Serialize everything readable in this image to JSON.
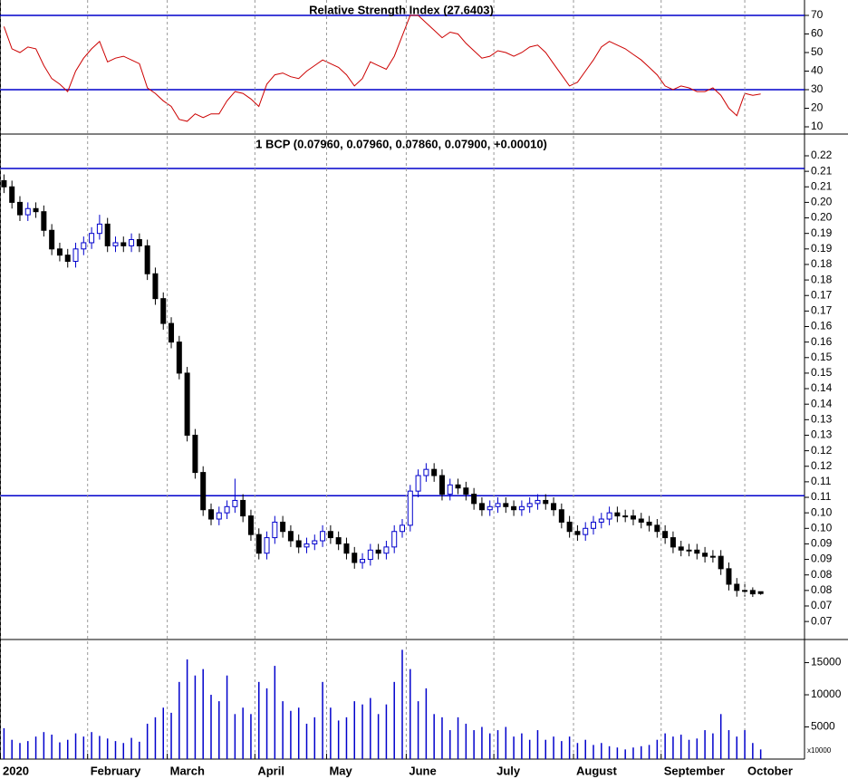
{
  "chart_data": [
    {
      "type": "line",
      "title": "Relative Strength Index (27.6403)",
      "color": "#cc0000",
      "values": [
        64,
        52,
        50,
        53,
        52,
        43,
        36,
        33,
        29,
        40,
        47,
        52,
        56,
        45,
        47,
        48,
        46,
        44,
        31,
        28,
        24,
        21,
        14,
        13,
        17,
        15,
        17,
        17,
        24,
        29,
        28,
        25,
        21,
        33,
        38,
        39,
        37,
        36,
        40,
        43,
        46,
        44,
        42,
        38,
        32,
        36,
        45,
        43,
        41,
        48,
        59,
        70,
        70,
        66,
        62,
        58,
        61,
        60,
        55,
        51,
        47,
        48,
        51,
        50,
        48,
        50,
        53,
        54,
        50,
        44,
        38,
        32,
        34,
        40,
        46,
        53,
        56,
        54,
        52,
        49,
        46,
        42,
        38,
        32,
        30,
        32,
        31,
        29,
        29,
        31,
        27,
        20,
        16,
        28,
        27,
        27.6403
      ],
      "xlim": [
        -0.5,
        100.5
      ],
      "ylim": [
        6.1,
        78.3
      ],
      "yticks": [
        10,
        20,
        30,
        40,
        50,
        60,
        70
      ],
      "reference_lines": [
        70,
        30
      ],
      "reference_color": "#0000cc"
    },
    {
      "type": "candlestick",
      "title": "1 BCP (0.07960, 0.07960, 0.07860, 0.07900, +0.00010)",
      "up_color": "#0000cc",
      "down_color": "#000000",
      "open": [
        0.212,
        0.21,
        0.205,
        0.201,
        0.203,
        0.202,
        0.196,
        0.19,
        0.188,
        0.186,
        0.19,
        0.192,
        0.195,
        0.198,
        0.191,
        0.192,
        0.191,
        0.193,
        0.191,
        0.182,
        0.174,
        0.166,
        0.16,
        0.15,
        0.13,
        0.118,
        0.106,
        0.103,
        0.105,
        0.107,
        0.109,
        0.104,
        0.098,
        0.092,
        0.097,
        0.102,
        0.099,
        0.096,
        0.094,
        0.095,
        0.096,
        0.099,
        0.097,
        0.095,
        0.092,
        0.089,
        0.09,
        0.093,
        0.092,
        0.094,
        0.099,
        0.101,
        0.112,
        0.117,
        0.119,
        0.117,
        0.111,
        0.114,
        0.113,
        0.111,
        0.108,
        0.106,
        0.107,
        0.108,
        0.107,
        0.106,
        0.107,
        0.108,
        0.109,
        0.108,
        0.106,
        0.102,
        0.099,
        0.098,
        0.1,
        0.102,
        0.103,
        0.105,
        0.104,
        0.104,
        0.103,
        0.102,
        0.101,
        0.099,
        0.097,
        0.094,
        0.093,
        0.093,
        0.092,
        0.091,
        0.091,
        0.087,
        0.082,
        0.08,
        0.08,
        0.0796
      ],
      "high": [
        0.214,
        0.212,
        0.207,
        0.205,
        0.205,
        0.204,
        0.198,
        0.192,
        0.19,
        0.192,
        0.194,
        0.197,
        0.201,
        0.2,
        0.194,
        0.194,
        0.195,
        0.195,
        0.193,
        0.184,
        0.176,
        0.168,
        0.162,
        0.152,
        0.132,
        0.12,
        0.108,
        0.107,
        0.109,
        0.116,
        0.111,
        0.106,
        0.1,
        0.099,
        0.104,
        0.104,
        0.101,
        0.098,
        0.097,
        0.098,
        0.101,
        0.101,
        0.099,
        0.097,
        0.094,
        0.092,
        0.095,
        0.095,
        0.096,
        0.101,
        0.103,
        0.114,
        0.119,
        0.121,
        0.121,
        0.119,
        0.116,
        0.116,
        0.115,
        0.113,
        0.11,
        0.109,
        0.11,
        0.11,
        0.109,
        0.109,
        0.11,
        0.111,
        0.111,
        0.11,
        0.108,
        0.104,
        0.101,
        0.102,
        0.104,
        0.105,
        0.107,
        0.107,
        0.106,
        0.106,
        0.105,
        0.104,
        0.103,
        0.101,
        0.099,
        0.096,
        0.095,
        0.095,
        0.094,
        0.093,
        0.093,
        0.089,
        0.084,
        0.082,
        0.081,
        0.0796
      ],
      "low": [
        0.208,
        0.203,
        0.199,
        0.199,
        0.2,
        0.194,
        0.188,
        0.186,
        0.184,
        0.184,
        0.188,
        0.19,
        0.193,
        0.189,
        0.189,
        0.189,
        0.189,
        0.189,
        0.18,
        0.172,
        0.164,
        0.158,
        0.148,
        0.128,
        0.116,
        0.104,
        0.101,
        0.101,
        0.103,
        0.105,
        0.102,
        0.096,
        0.09,
        0.09,
        0.095,
        0.097,
        0.094,
        0.092,
        0.092,
        0.093,
        0.094,
        0.095,
        0.093,
        0.09,
        0.087,
        0.087,
        0.088,
        0.09,
        0.09,
        0.092,
        0.097,
        0.099,
        0.11,
        0.115,
        0.115,
        0.109,
        0.109,
        0.111,
        0.109,
        0.106,
        0.104,
        0.104,
        0.105,
        0.105,
        0.104,
        0.104,
        0.105,
        0.106,
        0.106,
        0.104,
        0.1,
        0.097,
        0.096,
        0.096,
        0.098,
        0.1,
        0.101,
        0.102,
        0.102,
        0.101,
        0.1,
        0.099,
        0.097,
        0.095,
        0.092,
        0.091,
        0.091,
        0.09,
        0.089,
        0.089,
        0.085,
        0.08,
        0.078,
        0.078,
        0.0779,
        0.0786
      ],
      "close": [
        0.21,
        0.205,
        0.201,
        0.203,
        0.202,
        0.196,
        0.19,
        0.188,
        0.186,
        0.19,
        0.192,
        0.195,
        0.198,
        0.191,
        0.192,
        0.191,
        0.193,
        0.191,
        0.182,
        0.174,
        0.166,
        0.16,
        0.15,
        0.13,
        0.118,
        0.106,
        0.103,
        0.105,
        0.107,
        0.109,
        0.104,
        0.098,
        0.092,
        0.097,
        0.102,
        0.099,
        0.096,
        0.094,
        0.095,
        0.096,
        0.099,
        0.097,
        0.095,
        0.092,
        0.089,
        0.09,
        0.093,
        0.092,
        0.094,
        0.099,
        0.101,
        0.112,
        0.117,
        0.119,
        0.117,
        0.111,
        0.114,
        0.113,
        0.111,
        0.108,
        0.106,
        0.107,
        0.108,
        0.107,
        0.106,
        0.107,
        0.108,
        0.109,
        0.108,
        0.106,
        0.102,
        0.099,
        0.098,
        0.1,
        0.102,
        0.103,
        0.105,
        0.104,
        0.104,
        0.103,
        0.102,
        0.101,
        0.099,
        0.097,
        0.094,
        0.093,
        0.093,
        0.092,
        0.091,
        0.091,
        0.087,
        0.082,
        0.08,
        0.08,
        0.0789,
        0.079
      ],
      "xlim": [
        -0.5,
        100.5
      ],
      "ylim": [
        0.0642,
        0.227
      ],
      "yticks": [
        0.22,
        {
          "value": 0.215,
          "label": "0.21"
        },
        0.21,
        {
          "value": 0.205,
          "label": "0.20"
        },
        {
          "value": 0.2,
          "label": "0.20"
        },
        {
          "value": 0.195,
          "label": "0.19"
        },
        0.19,
        {
          "value": 0.185,
          "label": "0.18"
        },
        0.18,
        {
          "value": 0.175,
          "label": "0.17"
        },
        0.17,
        {
          "value": 0.165,
          "label": "0.16"
        },
        0.16,
        {
          "value": 0.155,
          "label": "0.15"
        },
        0.15,
        {
          "value": 0.145,
          "label": "0.14"
        },
        0.14,
        {
          "value": 0.135,
          "label": "0.13"
        },
        0.13,
        {
          "value": 0.125,
          "label": "0.12"
        },
        0.12,
        {
          "value": 0.115,
          "label": "0.11"
        },
        0.11,
        {
          "value": 0.105,
          "label": "0.10"
        },
        {
          "value": 0.1,
          "label": "0.10"
        },
        {
          "value": 0.095,
          "label": "0.09"
        },
        0.09,
        {
          "value": 0.085,
          "label": "0.08"
        },
        0.08,
        {
          "value": 0.075,
          "label": "0.07"
        },
        0.07
      ],
      "reference_lines": [
        0.2159,
        0.1105
      ],
      "reference_color": "#0000cc"
    },
    {
      "type": "bar",
      "color": "#0000cc",
      "unit_label": "x10000",
      "values": [
        4800,
        3000,
        2500,
        2800,
        3500,
        4200,
        3800,
        2600,
        3000,
        4000,
        3500,
        4200,
        3600,
        3200,
        2800,
        2500,
        3300,
        2700,
        5500,
        6500,
        8000,
        7200,
        12000,
        15500,
        13000,
        14000,
        10000,
        9000,
        13000,
        7000,
        8000,
        7000,
        12000,
        11000,
        14500,
        9000,
        7500,
        8000,
        5500,
        6500,
        12000,
        8000,
        6000,
        6500,
        9000,
        8500,
        9500,
        7000,
        8500,
        12000,
        17000,
        14000,
        9000,
        11000,
        7000,
        6500,
        4500,
        6500,
        5500,
        4500,
        5000,
        4000,
        4500,
        5000,
        3500,
        4000,
        3000,
        4500,
        3000,
        3500,
        2800,
        3500,
        2500,
        3000,
        2200,
        2500,
        2000,
        1800,
        1500,
        1800,
        2000,
        2200,
        3000,
        4000,
        3500,
        3800,
        3000,
        3200,
        4500,
        4000,
        7000,
        4500,
        3500,
        4500,
        2500,
        1500
      ],
      "xlim": [
        -0.5,
        100.5
      ],
      "ylim": [
        0,
        18600
      ],
      "yticks": [
        5000,
        10000,
        15000
      ],
      "xticks": [
        {
          "value": -0.5,
          "label": "2020"
        },
        {
          "value": 10.5,
          "label": "February"
        },
        {
          "value": 20.5,
          "label": "March"
        },
        {
          "value": 31.5,
          "label": "April"
        },
        {
          "value": 40.5,
          "label": "May"
        },
        {
          "value": 50.5,
          "label": "June"
        },
        {
          "value": 61.5,
          "label": "July"
        },
        {
          "value": 71.5,
          "label": "August"
        },
        {
          "value": 82.5,
          "label": "September"
        },
        {
          "value": 93,
          "label": "October"
        }
      ]
    }
  ]
}
